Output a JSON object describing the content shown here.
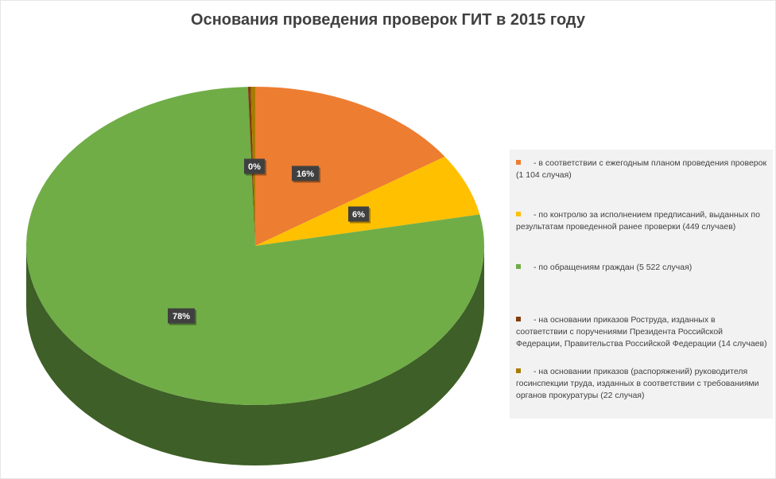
{
  "chart_data": {
    "type": "pie",
    "title": "Основания проведения проверок ГИТ в 2015 году",
    "series": [
      {
        "label": "- в соответствии с ежегодным планом проведения проверок (1 104 случая)",
        "value": 1104,
        "percent_label": "16%",
        "color": "#ED7D31"
      },
      {
        "label": "- по контролю за исполнением предписаний, выданных по результатам проведенной ранее проверки (449 случаев)",
        "value": 449,
        "percent_label": "6%",
        "color": "#FFC000"
      },
      {
        "label": "- по обращениям граждан (5 522 случая)",
        "value": 5522,
        "percent_label": "78%",
        "color": "#70AD47"
      },
      {
        "label": "- на основании приказов Роструда, изданных в соответствии с поручениями Президента Российской Федерации, Правительства Российской Федерации (14 случаев)",
        "value": 14,
        "percent_label": "",
        "color": "#843C0C"
      },
      {
        "label": "- на основании приказов (распоряжений) руководителя госинспекции труда, изданных в соответствии с требованиями органов прокуратуры (22 случая)",
        "value": 22,
        "percent_label": "0%",
        "color": "#A67C00"
      }
    ],
    "legend_position": "right"
  }
}
